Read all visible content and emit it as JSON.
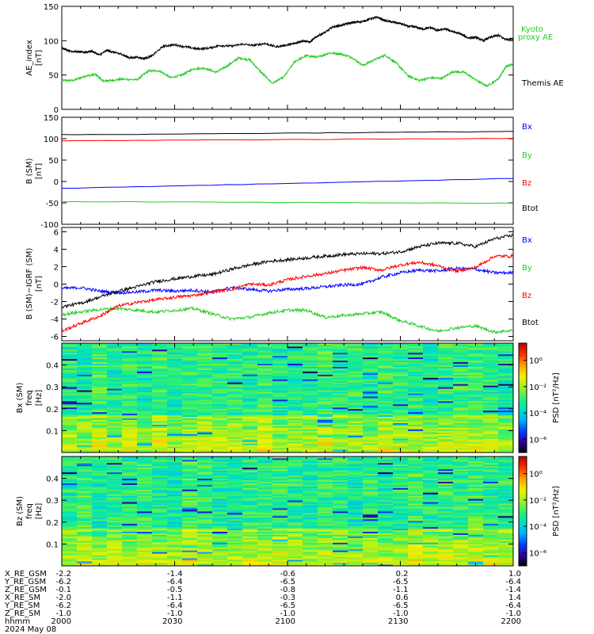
{
  "time_axis": {
    "xlim": [
      0,
      120
    ],
    "major_ticks": [
      0,
      30,
      60,
      90,
      120
    ]
  },
  "ephemeris": {
    "row_labels": [
      "X_RE_GSM",
      "Y_RE_GSM",
      "Z_RE_GSM",
      "X_RE_SM",
      "Y_RE_SM",
      "Z_RE_SM",
      "hhmm",
      "2024 May 08"
    ],
    "columns": [
      [
        "-2.2",
        "-6.2",
        "-0.1",
        "-2.0",
        "-6.2",
        "-1.0",
        "2000"
      ],
      [
        "-1.4",
        "-6.4",
        "-0.5",
        "-1.1",
        "-6.4",
        "-1.0",
        "2030"
      ],
      [
        "-0.6",
        "-6.5",
        "-0.8",
        "-0.3",
        "-6.5",
        "-1.0",
        "2100"
      ],
      [
        "0.2",
        "-6.5",
        "-1.1",
        "0.6",
        "-6.5",
        "-1.0",
        "2130"
      ],
      [
        "1.0",
        "-6.4",
        "-1.4",
        "1.4",
        "-6.4",
        "-1.0",
        "2200"
      ]
    ]
  },
  "colorbar": {
    "label": "PSD [nT²/Hz]",
    "tick_labels": [
      "10⁰",
      "10⁻²",
      "10⁻⁴",
      "10⁻⁶"
    ],
    "tick_exponents": [
      0,
      -2,
      -4,
      -6
    ],
    "range_exponent": [
      -7,
      1.3
    ],
    "colors": [
      "#000000",
      "#3000a0",
      "#0040ff",
      "#00b0ff",
      "#00e0c0",
      "#30f070",
      "#a0f020",
      "#f0f000",
      "#ffa000",
      "#ff3000",
      "#c00000"
    ]
  },
  "chart_data": [
    {
      "type": "line",
      "ylabel": "AE_index\n[nT]",
      "ylim": [
        0,
        150
      ],
      "y_ticks": [
        0,
        50,
        100,
        150
      ],
      "series": [
        {
          "name": "Kyoto\nproxy AE",
          "color": "#22cc22",
          "x": [
            0,
            3,
            6,
            9,
            11,
            13,
            16,
            20,
            23,
            26,
            29,
            32,
            35,
            38,
            41,
            44,
            47,
            50,
            53,
            56,
            59,
            62,
            65,
            68,
            71,
            74,
            77,
            80,
            83,
            86,
            89,
            92,
            95,
            98,
            101,
            104,
            107,
            110,
            113,
            116,
            118,
            120
          ],
          "y": [
            42,
            42,
            48,
            51,
            41,
            42,
            44,
            43,
            56,
            56,
            46,
            50,
            59,
            60,
            54,
            63,
            75,
            72,
            54,
            38,
            47,
            70,
            78,
            76,
            82,
            81,
            76,
            64,
            72,
            79,
            67,
            49,
            42,
            46,
            45,
            55,
            54,
            43,
            34,
            44,
            62,
            66
          ]
        },
        {
          "name": "Themis AE",
          "color": "#000000",
          "x": [
            0,
            2,
            4,
            6,
            8,
            10,
            12,
            14,
            16,
            18,
            20,
            22,
            24,
            27,
            30,
            33,
            36,
            39,
            42,
            45,
            48,
            51,
            54,
            57,
            60,
            62,
            64,
            66,
            68,
            70,
            72,
            74,
            76,
            78,
            80,
            82,
            84,
            86,
            88,
            90,
            92,
            94,
            96,
            98,
            100,
            102,
            104,
            106,
            108,
            110,
            112,
            114,
            116,
            118,
            120
          ],
          "y": [
            90,
            85,
            84,
            83,
            85,
            79,
            86,
            83,
            80,
            75,
            76,
            74,
            78,
            92,
            94,
            91,
            88,
            89,
            93,
            92,
            95,
            93,
            96,
            91,
            94,
            96,
            100,
            98,
            107,
            112,
            120,
            122,
            125,
            127,
            128,
            132,
            134,
            129,
            127,
            125,
            121,
            120,
            117,
            119,
            115,
            117,
            113,
            110,
            104,
            105,
            100,
            105,
            108,
            102,
            103
          ]
        }
      ]
    },
    {
      "type": "line",
      "ylabel": "B (SM)\n[nT]",
      "ylim": [
        -100,
        150
      ],
      "y_ticks": [
        -100,
        -50,
        0,
        50,
        100,
        150
      ],
      "series": [
        {
          "name": "Bx",
          "color": "#0000ff",
          "x": [
            0,
            120
          ],
          "y": [
            -16,
            7
          ]
        },
        {
          "name": "By",
          "color": "#22cc22",
          "x": [
            0,
            120
          ],
          "y": [
            -47,
            -51
          ]
        },
        {
          "name": "Bz",
          "color": "#ff0000",
          "x": [
            0,
            120
          ],
          "y": [
            95,
            101
          ]
        },
        {
          "name": "Btot",
          "color": "#000000",
          "x": [
            0,
            120
          ],
          "y": [
            109,
            117
          ]
        }
      ]
    },
    {
      "type": "line",
      "ylabel": "B (SM)−IGRF (SM)\n[nT]",
      "ylim": [
        -6.5,
        6.5
      ],
      "y_ticks": [
        -6,
        -4,
        -2,
        0,
        2,
        4,
        6
      ],
      "series": [
        {
          "name": "Bx",
          "color": "#0000ff",
          "x": [
            0,
            5,
            10,
            15,
            20,
            25,
            30,
            35,
            40,
            45,
            50,
            55,
            60,
            65,
            70,
            75,
            80,
            85,
            90,
            95,
            100,
            105,
            110,
            115,
            120
          ],
          "y": [
            -0.5,
            -0.4,
            -0.8,
            -1.0,
            -0.9,
            -0.7,
            -0.8,
            -0.7,
            -0.9,
            -0.4,
            -0.6,
            -0.8,
            -0.6,
            -0.5,
            -0.3,
            -0.1,
            0.0,
            0.8,
            1.3,
            1.6,
            1.5,
            1.8,
            1.7,
            1.3,
            1.3
          ]
        },
        {
          "name": "By",
          "color": "#22cc22",
          "x": [
            0,
            5,
            10,
            15,
            20,
            25,
            30,
            35,
            40,
            45,
            50,
            55,
            60,
            65,
            70,
            75,
            80,
            85,
            90,
            95,
            100,
            105,
            110,
            115,
            120
          ],
          "y": [
            -3.5,
            -3.2,
            -2.9,
            -2.8,
            -3.0,
            -3.2,
            -3.0,
            -2.8,
            -3.4,
            -4.0,
            -3.8,
            -3.3,
            -3.0,
            -3.0,
            -3.8,
            -3.6,
            -3.4,
            -3.2,
            -4.2,
            -4.8,
            -5.4,
            -5.0,
            -4.8,
            -5.5,
            -5.3
          ]
        },
        {
          "name": "Bz",
          "color": "#ff0000",
          "x": [
            0,
            5,
            10,
            15,
            20,
            25,
            30,
            35,
            40,
            45,
            50,
            55,
            60,
            65,
            70,
            75,
            80,
            85,
            90,
            95,
            100,
            105,
            110,
            115,
            120
          ],
          "y": [
            -5.4,
            -4.5,
            -3.7,
            -2.5,
            -2.1,
            -1.8,
            -1.5,
            -1.3,
            -0.9,
            -0.6,
            0.0,
            -0.1,
            0.5,
            0.9,
            1.2,
            1.6,
            1.9,
            1.6,
            2.2,
            2.5,
            2.1,
            1.5,
            1.9,
            3.2,
            3.2
          ]
        },
        {
          "name": "Btot",
          "color": "#000000",
          "x": [
            0,
            5,
            10,
            15,
            20,
            25,
            30,
            35,
            40,
            45,
            50,
            55,
            60,
            65,
            70,
            75,
            80,
            85,
            90,
            95,
            100,
            105,
            110,
            115,
            120
          ],
          "y": [
            -2.6,
            -2.2,
            -1.5,
            -0.8,
            -0.3,
            0.3,
            0.6,
            0.9,
            1.1,
            1.7,
            2.2,
            2.6,
            2.8,
            3.0,
            3.2,
            3.4,
            3.5,
            3.5,
            3.7,
            4.3,
            4.7,
            4.7,
            4.3,
            5.2,
            5.6
          ]
        }
      ]
    },
    {
      "type": "heatmap",
      "ylabel": "Bx (SM)\nfreq\n[Hz]",
      "ylim": [
        0,
        0.5
      ],
      "y_ticks": [
        0.1,
        0.2,
        0.3,
        0.4
      ],
      "y_tick_labels": [
        "0.1",
        "0.2",
        "0.3",
        "0.4"
      ],
      "dominant_exponent_range": [
        -4,
        -2
      ],
      "low_freq_enhancement": "below 0.17 Hz"
    },
    {
      "type": "heatmap",
      "ylabel": "Bz (SM)\nfreq\n[Hz]",
      "ylim": [
        0,
        0.5
      ],
      "y_ticks": [
        0.1,
        0.2,
        0.3,
        0.4
      ],
      "y_tick_labels": [
        "0.1",
        "0.2",
        "0.3",
        "0.4"
      ],
      "dominant_exponent_range": [
        -4,
        -2
      ],
      "low_freq_enhancement": "below 0.17 Hz"
    }
  ]
}
